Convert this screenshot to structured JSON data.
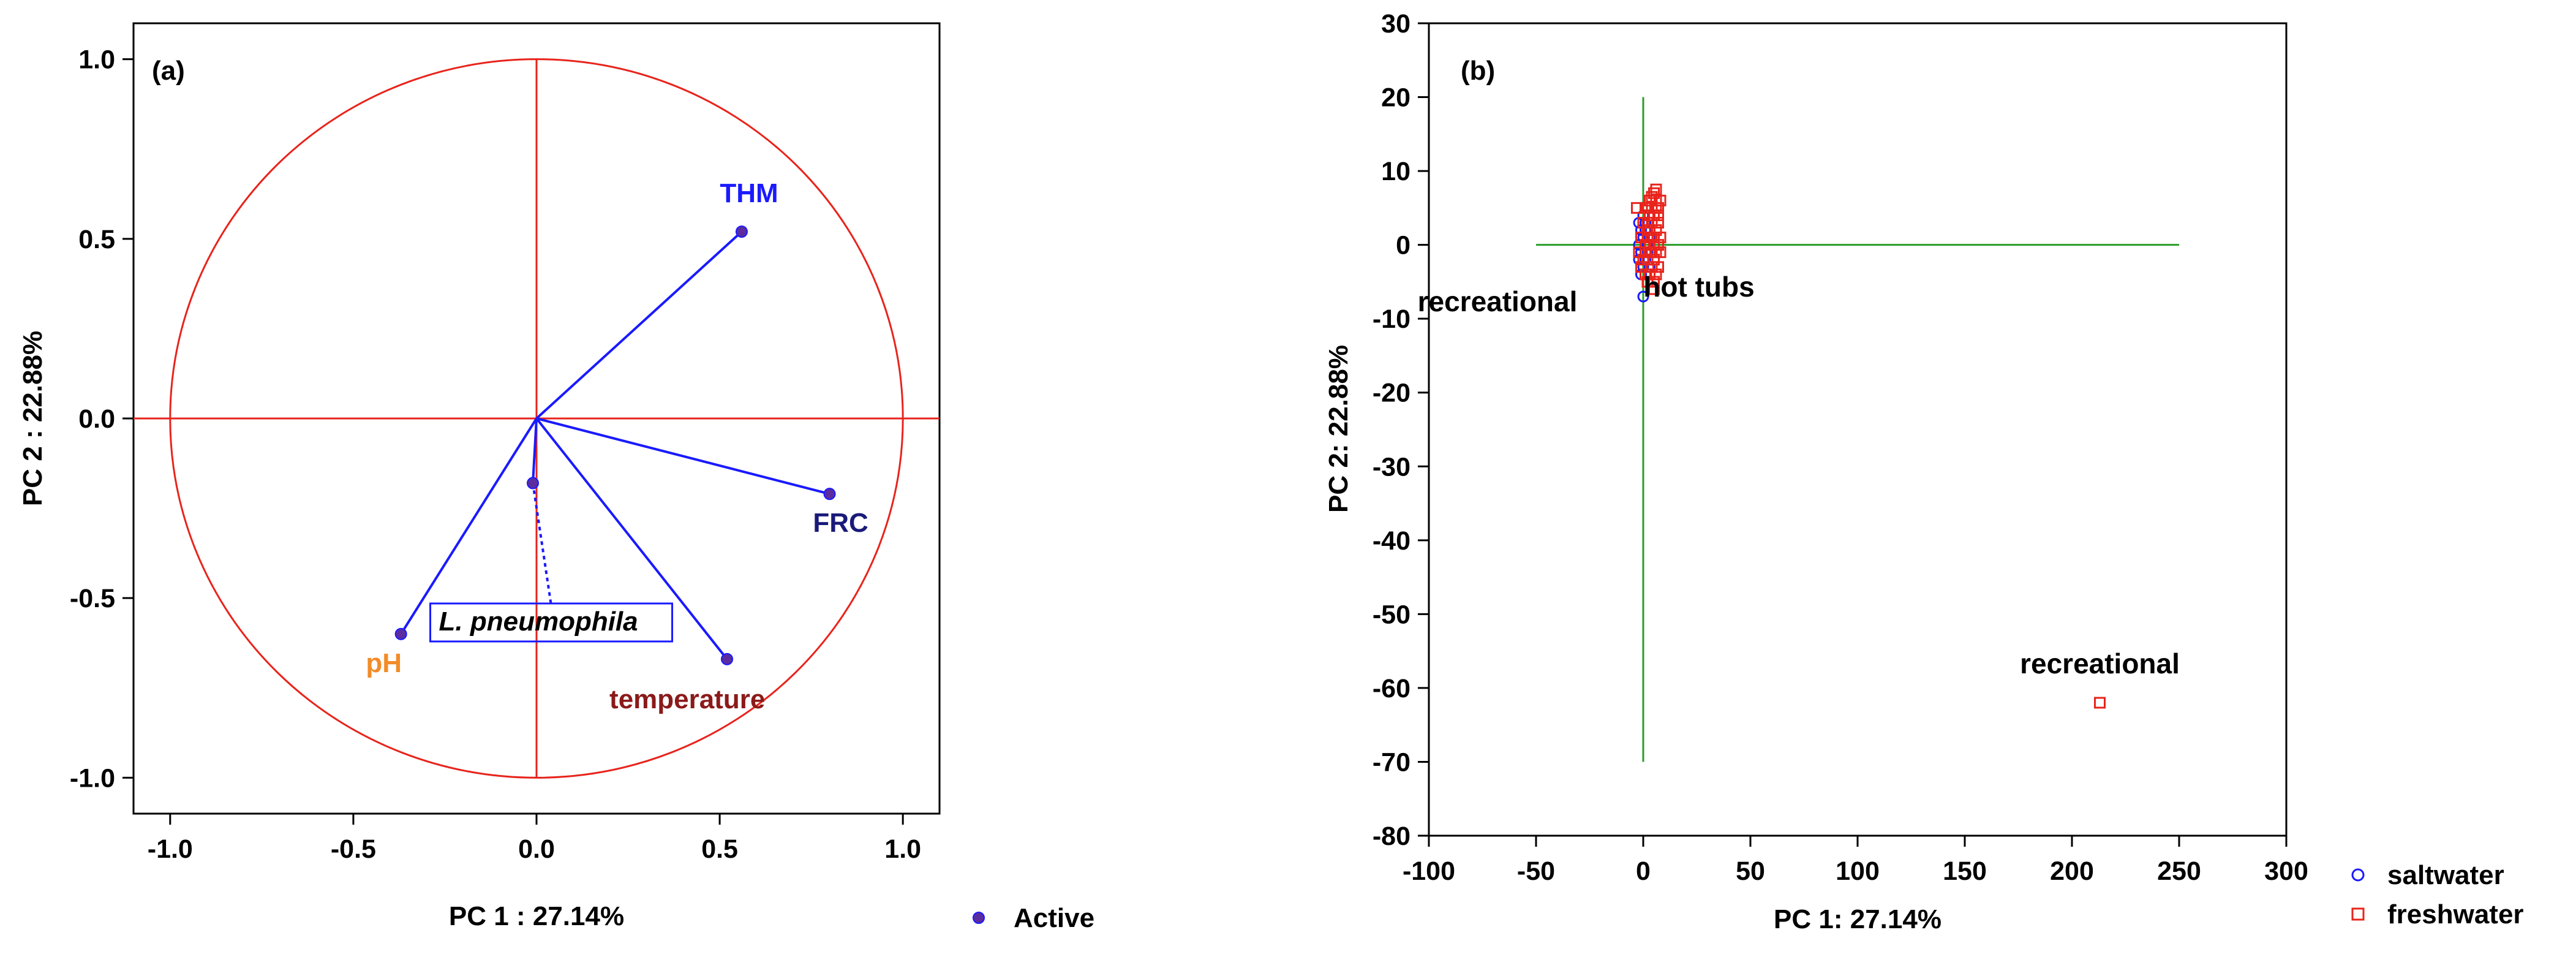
{
  "chart_data": [
    {
      "type": "scatter",
      "panel_label": "(a)",
      "xlabel": "PC 1 : 27.14%",
      "ylabel": "PC 2 : 22.88%",
      "xlim": [
        -1.1,
        1.1
      ],
      "ylim": [
        -1.1,
        1.1
      ],
      "xticks": [
        "-1.0",
        "-0.5",
        "0.0",
        "0.5",
        "1.0"
      ],
      "xtick_values": [
        -1.0,
        -0.5,
        0.0,
        0.5,
        1.0
      ],
      "yticks": [
        "1.0",
        "0.5",
        "0.0",
        "-0.5",
        "-1.0"
      ],
      "ytick_values": [
        1.0,
        0.5,
        0.0,
        -0.5,
        -1.0
      ],
      "unit_circle": true,
      "grid": false,
      "vectors": [
        {
          "label": "THM",
          "x": 0.56,
          "y": 0.52,
          "color": "#1a1aff",
          "label_color": "#1a1aff"
        },
        {
          "label": "FRC",
          "x": 0.8,
          "y": -0.21,
          "color": "#1a1aff",
          "label_color": "#1a1a7a"
        },
        {
          "label": "pH",
          "x": -0.37,
          "y": -0.6,
          "color": "#1a1aff",
          "label_color": "#f28c28"
        },
        {
          "label": "temperature",
          "x": 0.52,
          "y": -0.67,
          "color": "#1a1aff",
          "label_color": "#8b1a1a"
        },
        {
          "label": "L. pneumophila",
          "x": -0.01,
          "y": -0.18,
          "color": "#1a1aff",
          "label_color": "#000000",
          "dashed": true,
          "boxed": true
        }
      ],
      "legend": {
        "label": "Active",
        "marker_color": "#5b2ca0",
        "position": "bottom-right"
      }
    },
    {
      "type": "scatter",
      "panel_label": "(b)",
      "xlabel": "PC 1: 27.14%",
      "ylabel": "PC 2: 22.88%",
      "xlim": [
        -100,
        300
      ],
      "ylim": [
        -80,
        30
      ],
      "xticks": [
        "-100",
        "-50",
        "0",
        "50",
        "100",
        "150",
        "200",
        "250",
        "300"
      ],
      "xtick_values": [
        -100,
        -50,
        0,
        50,
        100,
        150,
        200,
        250,
        300
      ],
      "yticks": [
        "30",
        "20",
        "10",
        "0",
        "-10",
        "-20",
        "-30",
        "-40",
        "-50",
        "-60",
        "-70",
        "-80"
      ],
      "ytick_values": [
        30,
        20,
        10,
        0,
        -10,
        -20,
        -30,
        -40,
        -50,
        -60,
        -70,
        -80
      ],
      "grid": false,
      "axis_lines": {
        "color": "#2a9d2a",
        "horizontal": {
          "y": 0,
          "x_from": -50,
          "x_to": 250
        },
        "vertical": {
          "x": 0,
          "y_from": 20,
          "y_to": -70
        }
      },
      "annotations": [
        {
          "text": "recreational",
          "x": -68,
          "y": -9
        },
        {
          "text": "hot tubs",
          "x": 26,
          "y": -7
        },
        {
          "text": "recreational",
          "x": 213,
          "y": -58
        }
      ],
      "series": [
        {
          "name": "saltwater",
          "marker": "circle",
          "color": "#1a1aff",
          "points": [
            [
              0,
              -7
            ],
            [
              -2,
              3
            ],
            [
              1,
              2
            ],
            [
              -1,
              -1
            ],
            [
              2,
              0
            ],
            [
              0,
              1
            ],
            [
              -1,
              2
            ],
            [
              1,
              -2
            ],
            [
              0,
              -3
            ],
            [
              3,
              1
            ],
            [
              -2,
              0
            ],
            [
              1,
              3
            ],
            [
              2,
              -1
            ],
            [
              -1,
              -4
            ],
            [
              0,
              4
            ],
            [
              3,
              -3
            ],
            [
              1,
              0
            ],
            [
              -2,
              -2
            ]
          ]
        },
        {
          "name": "freshwater",
          "marker": "square",
          "color": "#e8241c",
          "points": [
            [
              213,
              -62
            ],
            [
              -3,
              5
            ],
            [
              8,
              6
            ],
            [
              5,
              7
            ],
            [
              4,
              6.5
            ],
            [
              6,
              5
            ],
            [
              3,
              4
            ],
            [
              7,
              3
            ],
            [
              2,
              2
            ],
            [
              6,
              2
            ],
            [
              4,
              1
            ],
            [
              8,
              1
            ],
            [
              1,
              0
            ],
            [
              5,
              0
            ],
            [
              7,
              0
            ],
            [
              3,
              -1
            ],
            [
              6,
              -1
            ],
            [
              2,
              -2
            ],
            [
              5,
              -2
            ],
            [
              4,
              -3
            ],
            [
              7,
              -3
            ],
            [
              1,
              -4
            ],
            [
              3,
              -4
            ],
            [
              6,
              -4
            ],
            [
              2,
              1
            ],
            [
              4,
              3
            ],
            [
              5,
              4
            ],
            [
              3,
              6
            ],
            [
              6,
              6
            ],
            [
              2,
              -5
            ],
            [
              5,
              -5
            ],
            [
              -1,
              1
            ],
            [
              -2,
              -1
            ],
            [
              0,
              3
            ],
            [
              1,
              5
            ],
            [
              4,
              -1
            ],
            [
              3,
              2
            ],
            [
              7,
              4
            ],
            [
              0,
              -2
            ],
            [
              8,
              -1
            ],
            [
              2,
              5
            ],
            [
              5,
              -6
            ],
            [
              -1,
              -3
            ],
            [
              6,
              7.5
            ],
            [
              3,
              0
            ],
            [
              1,
              -1
            ],
            [
              4,
              5
            ],
            [
              7,
              5
            ],
            [
              2,
              3
            ],
            [
              5,
              1
            ]
          ]
        }
      ],
      "legend": {
        "position": "bottom-right"
      }
    }
  ]
}
